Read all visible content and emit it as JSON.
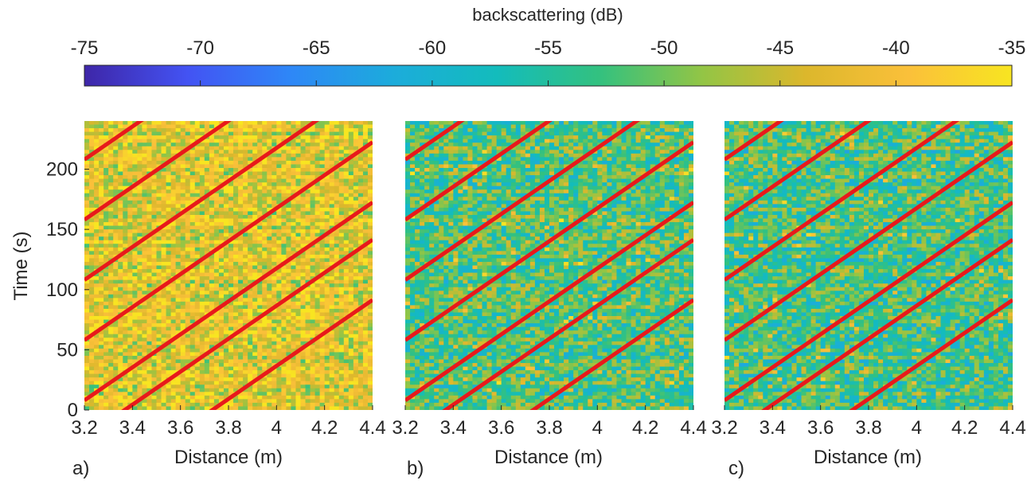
{
  "colors": {
    "trend_line": "#e8191b",
    "colormap": [
      "#3e26a8",
      "#4353f3",
      "#2e87f7",
      "#1cacdb",
      "#13bcbc",
      "#33c17f",
      "#93c545",
      "#dcb72c",
      "#fac03a",
      "#f8e521"
    ]
  },
  "colorbar": {
    "title": "backscattering (dB)",
    "ticks": [
      "-75",
      "-70",
      "-65",
      "-60",
      "-55",
      "-50",
      "-45",
      "-40",
      "-35"
    ],
    "range": [
      -75,
      -35
    ]
  },
  "chart_data": [
    {
      "type": "heatmap",
      "panel_label": "a)",
      "xlabel": "Distance (m)",
      "ylabel": "Time (s)",
      "xlim": [
        3.2,
        4.4
      ],
      "ylim": [
        0,
        240
      ],
      "xticks": [
        "3.2",
        "3.4",
        "3.6",
        "3.8",
        "4",
        "4.2",
        "4.4"
      ],
      "yticks": [
        "0",
        "50",
        "100",
        "150",
        "200"
      ],
      "mean_level_db": -43,
      "red_lines": {
        "slope_s_per_m": 137,
        "intercepts_at_3_2m": [
          -73,
          -23,
          8,
          58,
          108,
          158,
          208
        ]
      }
    },
    {
      "type": "heatmap",
      "panel_label": "b)",
      "xlabel": "Distance (m)",
      "ylabel": "",
      "xlim": [
        3.2,
        4.4
      ],
      "ylim": [
        0,
        240
      ],
      "xticks": [
        "3.2",
        "3.4",
        "3.6",
        "3.8",
        "4",
        "4.2",
        "4.4"
      ],
      "yticks": [],
      "mean_level_db": -52,
      "red_lines": {
        "slope_s_per_m": 137,
        "intercepts_at_3_2m": [
          -73,
          -23,
          8,
          58,
          108,
          158,
          208
        ]
      }
    },
    {
      "type": "heatmap",
      "panel_label": "c)",
      "xlabel": "Distance (m)",
      "ylabel": "",
      "xlim": [
        3.2,
        4.4
      ],
      "ylim": [
        0,
        240
      ],
      "xticks": [
        "3.2",
        "3.4",
        "3.6",
        "3.8",
        "4",
        "4.2",
        "4.4"
      ],
      "yticks": [],
      "mean_level_db": -53,
      "red_lines": {
        "slope_s_per_m": 137,
        "intercepts_at_3_2m": [
          -73,
          -23,
          8,
          58,
          108,
          158,
          208
        ]
      }
    }
  ]
}
